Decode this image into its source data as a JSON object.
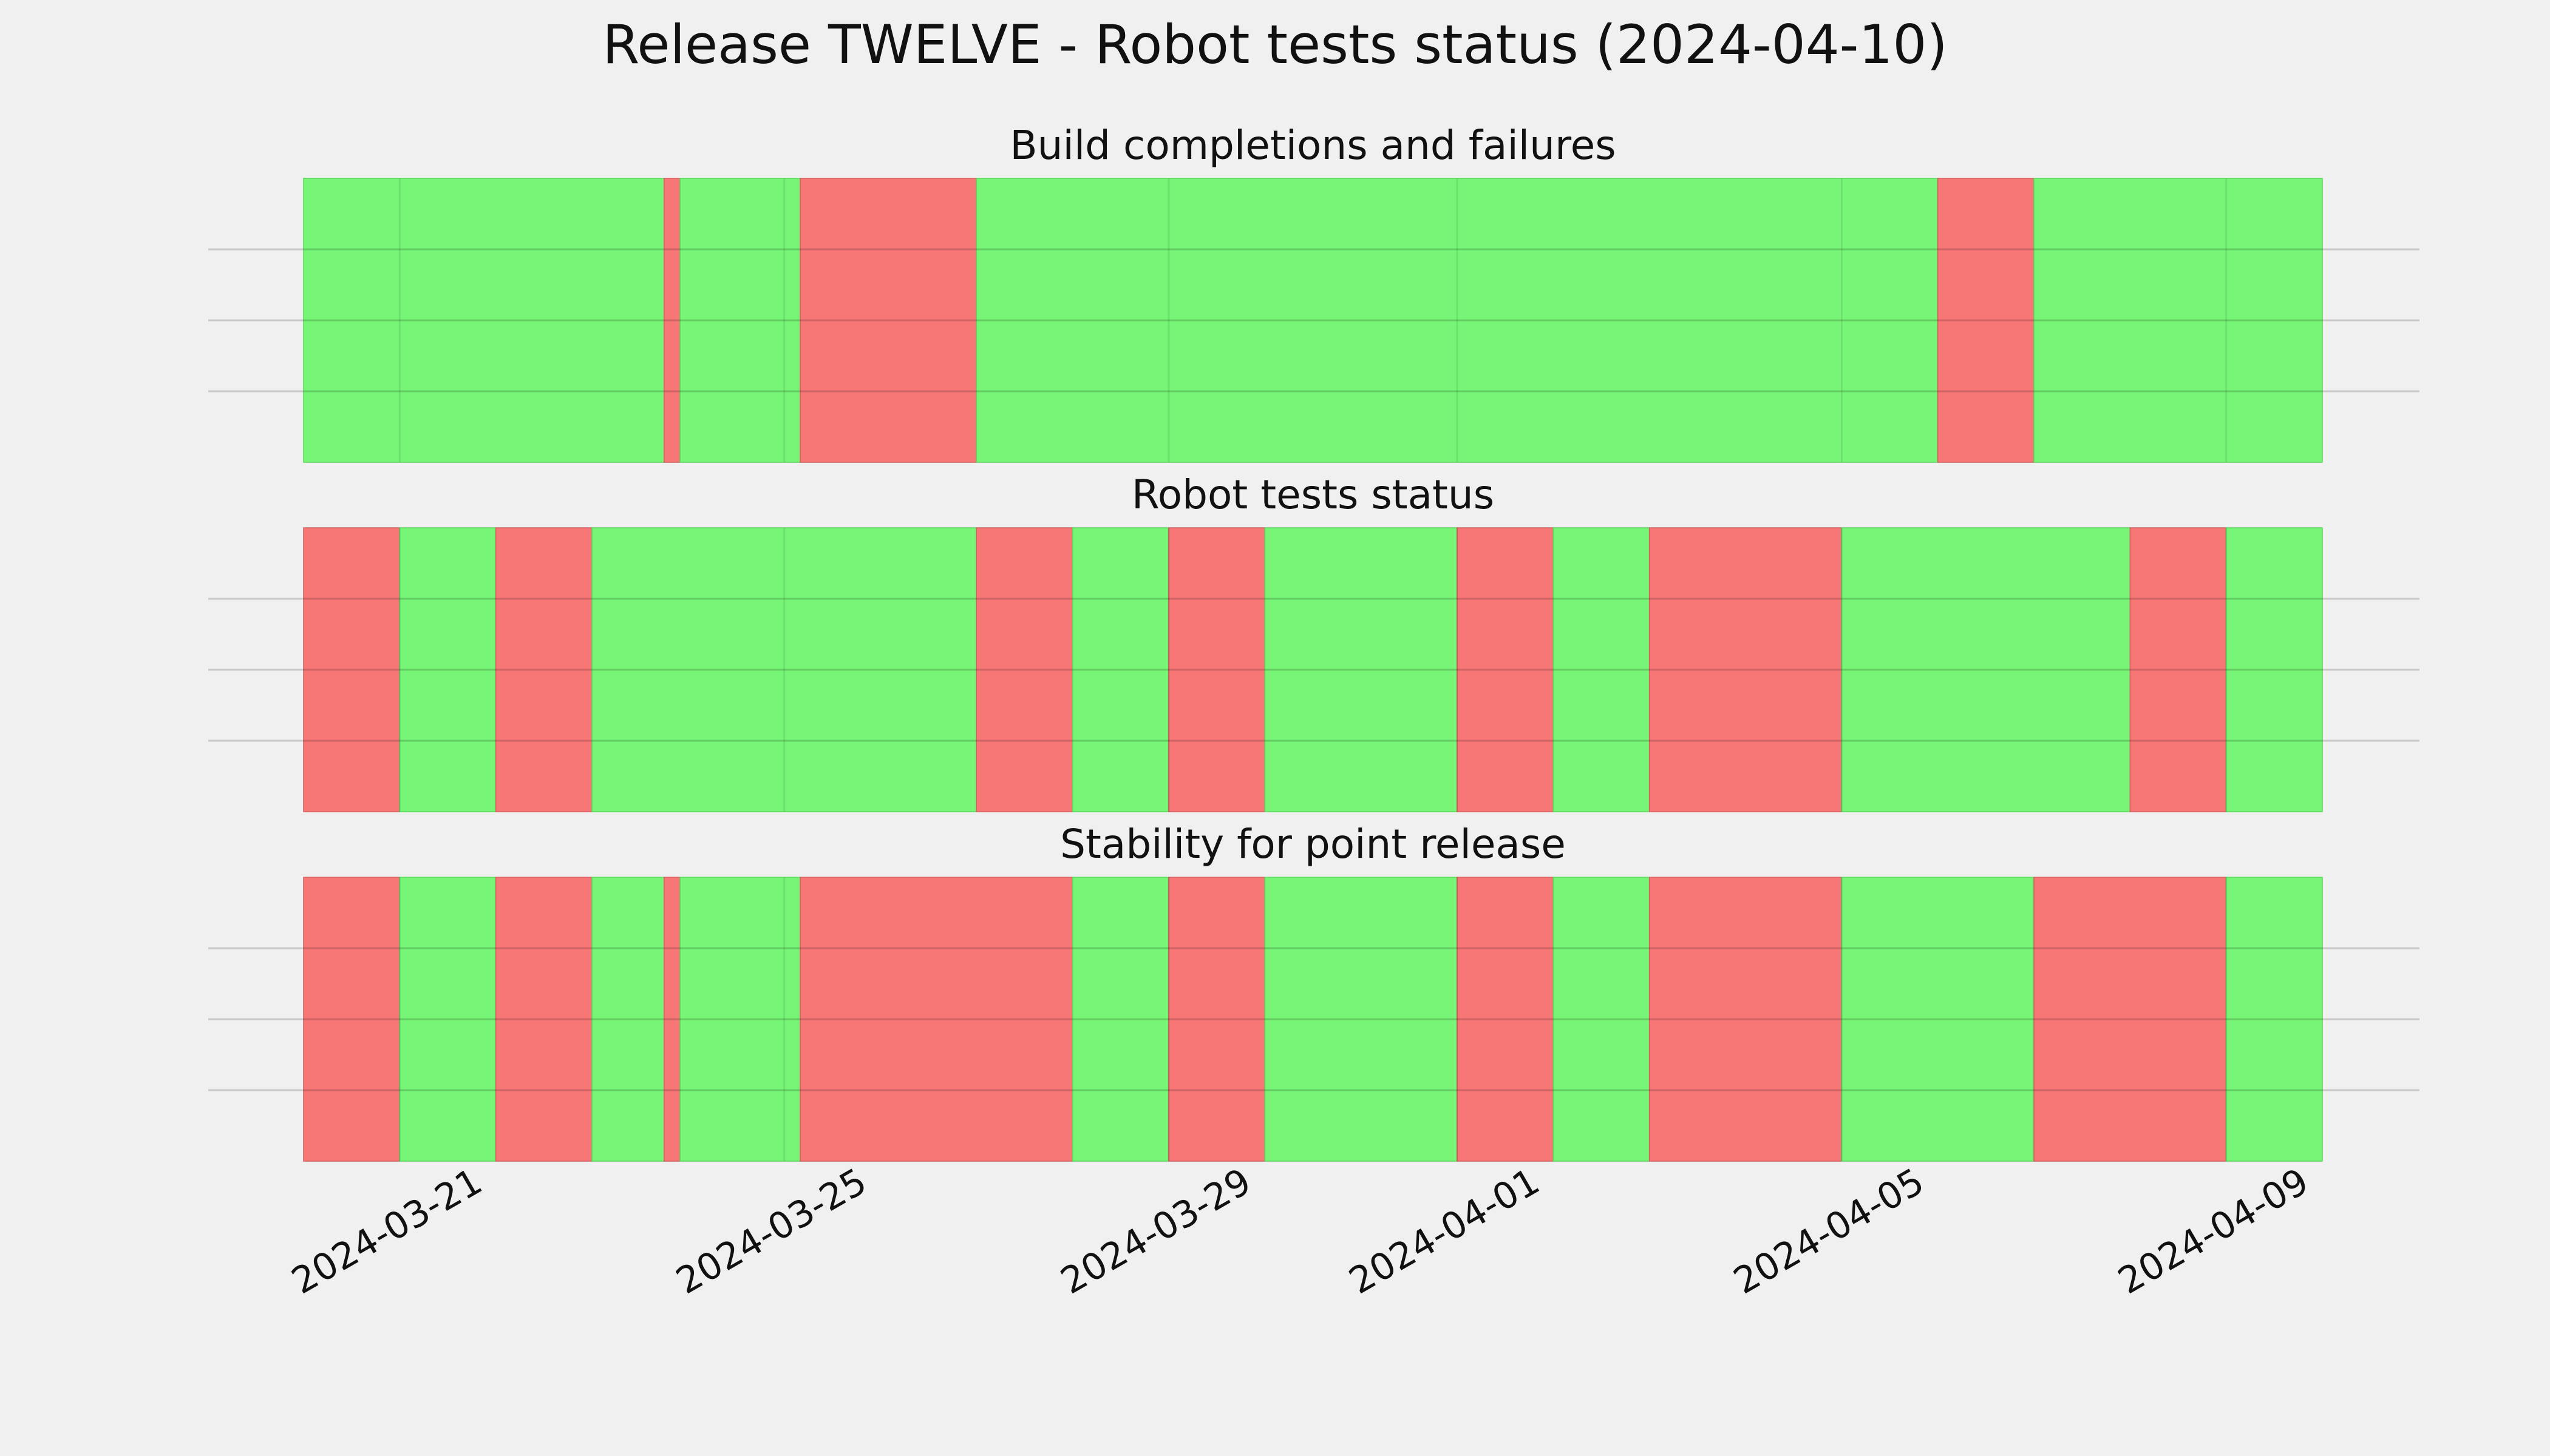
{
  "figure": {
    "title": "Release TWELVE - Robot tests status (2024-04-10)"
  },
  "colors": {
    "background": "#f0f0f0",
    "pass": "#77f577",
    "fail": "#f77777",
    "grid": "#c8c8c8"
  },
  "chart_data": [
    {
      "type": "timeline",
      "title": "Build completions and failures",
      "x_range": [
        "2024-03-20",
        "2024-04-10"
      ],
      "grid": true,
      "segments": [
        {
          "start": "2024-03-20",
          "end": "2024-03-23 18:00",
          "status": "pass"
        },
        {
          "start": "2024-03-23 18:00",
          "end": "2024-03-23 22:00",
          "status": "fail"
        },
        {
          "start": "2024-03-23 22:00",
          "end": "2024-03-25 04:00",
          "status": "pass"
        },
        {
          "start": "2024-03-25 04:00",
          "end": "2024-03-27",
          "status": "fail"
        },
        {
          "start": "2024-03-27",
          "end": "2024-04-06",
          "status": "pass"
        },
        {
          "start": "2024-04-06",
          "end": "2024-04-07",
          "status": "fail"
        },
        {
          "start": "2024-04-07",
          "end": "2024-04-10",
          "status": "pass"
        }
      ]
    },
    {
      "type": "timeline",
      "title": "Robot tests status",
      "x_range": [
        "2024-03-20",
        "2024-04-10"
      ],
      "grid": true,
      "segments": [
        {
          "start": "2024-03-20",
          "end": "2024-03-21",
          "status": "fail"
        },
        {
          "start": "2024-03-21",
          "end": "2024-03-22",
          "status": "pass"
        },
        {
          "start": "2024-03-22",
          "end": "2024-03-23",
          "status": "fail"
        },
        {
          "start": "2024-03-23",
          "end": "2024-03-27",
          "status": "pass"
        },
        {
          "start": "2024-03-27",
          "end": "2024-03-28",
          "status": "fail"
        },
        {
          "start": "2024-03-28",
          "end": "2024-03-29",
          "status": "pass"
        },
        {
          "start": "2024-03-29",
          "end": "2024-03-30",
          "status": "fail"
        },
        {
          "start": "2024-03-30",
          "end": "2024-04-01",
          "status": "pass"
        },
        {
          "start": "2024-04-01",
          "end": "2024-04-02",
          "status": "fail"
        },
        {
          "start": "2024-04-02",
          "end": "2024-04-03",
          "status": "pass"
        },
        {
          "start": "2024-04-03",
          "end": "2024-04-05",
          "status": "fail"
        },
        {
          "start": "2024-04-05",
          "end": "2024-04-08",
          "status": "pass"
        },
        {
          "start": "2024-04-08",
          "end": "2024-04-09",
          "status": "fail"
        },
        {
          "start": "2024-04-09",
          "end": "2024-04-10",
          "status": "pass"
        }
      ]
    },
    {
      "type": "timeline",
      "title": "Stability for point release",
      "x_range": [
        "2024-03-20",
        "2024-04-10"
      ],
      "grid": true,
      "segments": [
        {
          "start": "2024-03-20",
          "end": "2024-03-21",
          "status": "fail"
        },
        {
          "start": "2024-03-21",
          "end": "2024-03-22",
          "status": "pass"
        },
        {
          "start": "2024-03-22",
          "end": "2024-03-23",
          "status": "fail"
        },
        {
          "start": "2024-03-23",
          "end": "2024-03-23 18:00",
          "status": "pass"
        },
        {
          "start": "2024-03-23 18:00",
          "end": "2024-03-23 22:00",
          "status": "fail"
        },
        {
          "start": "2024-03-23 22:00",
          "end": "2024-03-25 04:00",
          "status": "pass"
        },
        {
          "start": "2024-03-25 04:00",
          "end": "2024-03-28",
          "status": "fail"
        },
        {
          "start": "2024-03-28",
          "end": "2024-03-29",
          "status": "pass"
        },
        {
          "start": "2024-03-29",
          "end": "2024-03-30",
          "status": "fail"
        },
        {
          "start": "2024-03-30",
          "end": "2024-04-01",
          "status": "pass"
        },
        {
          "start": "2024-04-01",
          "end": "2024-04-02",
          "status": "fail"
        },
        {
          "start": "2024-04-02",
          "end": "2024-04-03",
          "status": "pass"
        },
        {
          "start": "2024-04-03",
          "end": "2024-04-05",
          "status": "fail"
        },
        {
          "start": "2024-04-05",
          "end": "2024-04-07",
          "status": "pass"
        },
        {
          "start": "2024-04-07",
          "end": "2024-04-09",
          "status": "fail"
        },
        {
          "start": "2024-04-09",
          "end": "2024-04-10",
          "status": "pass"
        }
      ]
    }
  ],
  "x_ticks": [
    {
      "date": "2024-03-21",
      "label": "2024-03-21"
    },
    {
      "date": "2024-03-25",
      "label": "2024-03-25"
    },
    {
      "date": "2024-03-29",
      "label": "2024-03-29"
    },
    {
      "date": "2024-04-01",
      "label": "2024-04-01"
    },
    {
      "date": "2024-04-05",
      "label": "2024-04-05"
    },
    {
      "date": "2024-04-09",
      "label": "2024-04-09"
    }
  ],
  "x_tick_positions": [
    {
      "date": "2024-03-21"
    },
    {
      "date": "2024-03-25"
    },
    {
      "date": "2024-03-29"
    },
    {
      "date": "2024-04-01"
    },
    {
      "date": "2024-04-05"
    },
    {
      "date": "2024-04-09"
    }
  ]
}
